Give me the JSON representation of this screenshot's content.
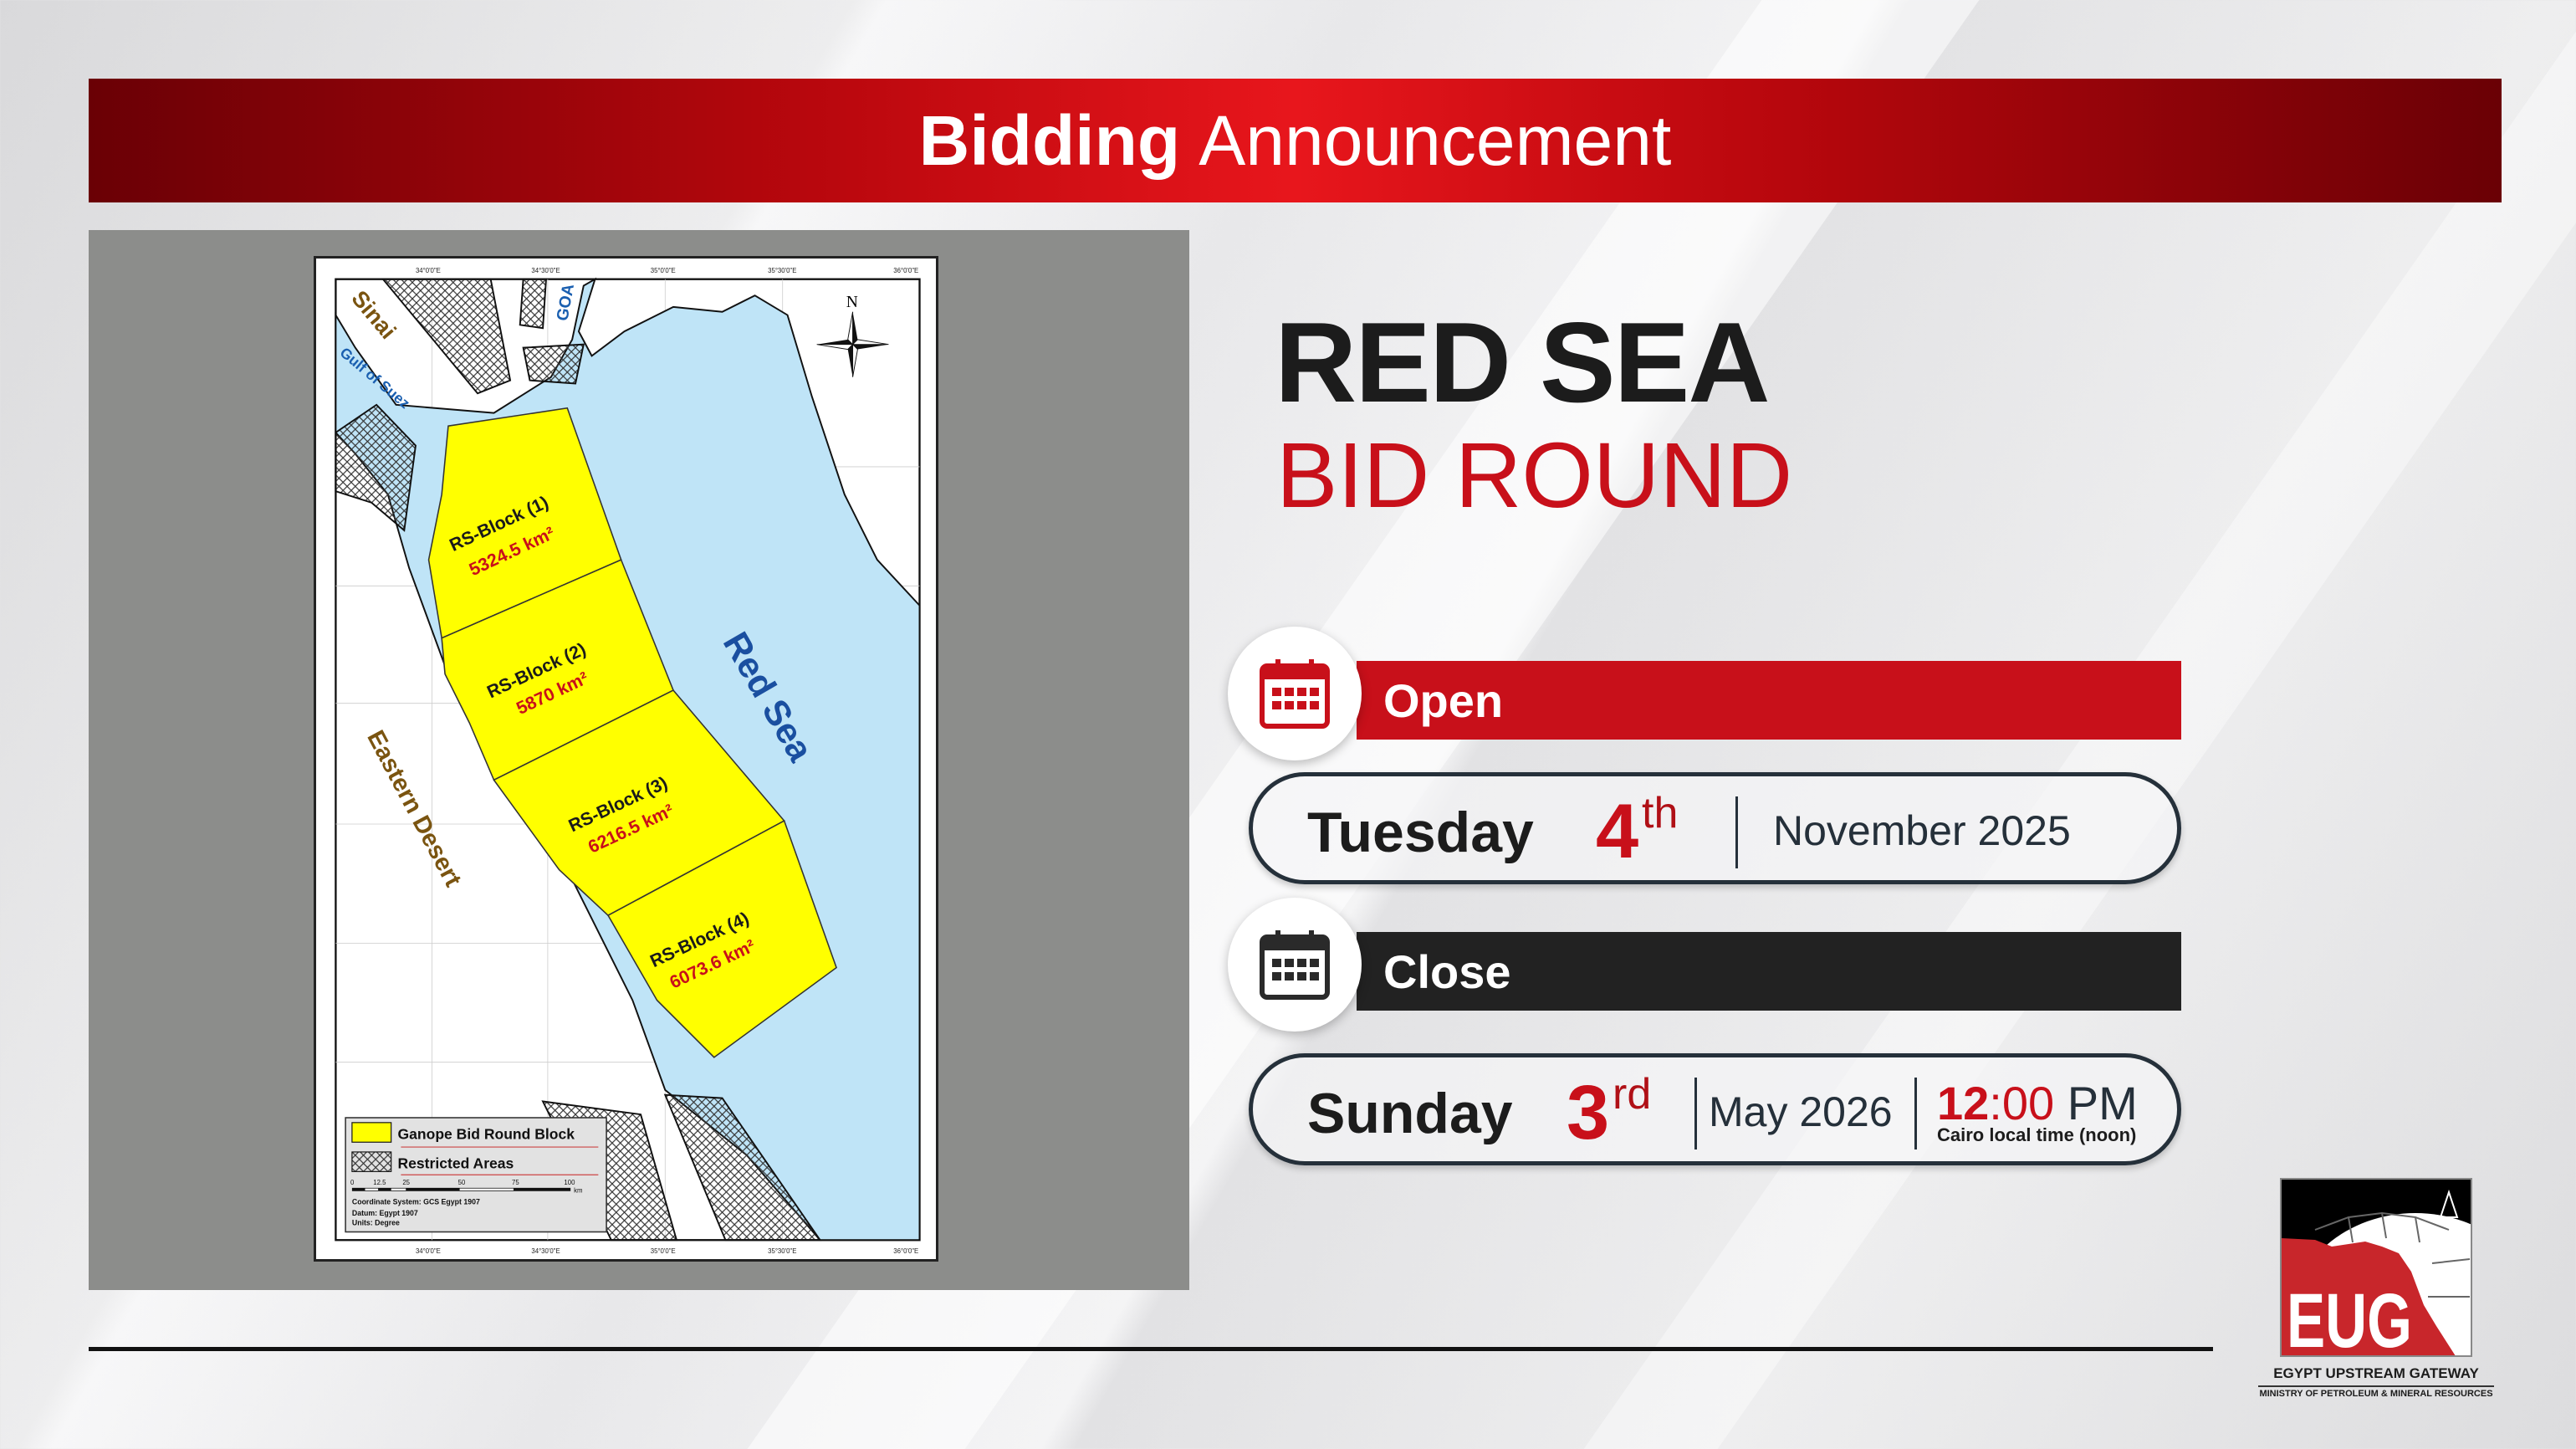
{
  "header": {
    "title_bold": "Bidding",
    "title_rest": "Announcement"
  },
  "headline": {
    "line1": "RED SEA",
    "line2": "BID ROUND"
  },
  "open": {
    "label": "Open",
    "icon": "calendar-icon",
    "color": "#c8101a",
    "day": "Tuesday",
    "date": "4",
    "suffix": "th",
    "month_year": "November 2025"
  },
  "close": {
    "label": "Close",
    "icon": "calendar-icon",
    "color": "#222222",
    "day": "Sunday",
    "date": "3",
    "suffix": "rd",
    "month_year": "May 2026",
    "time_bold": "12",
    "time_rest": ":00",
    "time_ampm": "PM",
    "time_note": "Cairo local time (noon)"
  },
  "map": {
    "labels": {
      "sinai": "Sinai",
      "gulf_of_suez": "Gulf of Suez",
      "goa": "GOA",
      "red_sea": "Red Sea",
      "eastern_desert": "Eastern Desert",
      "north": "N"
    },
    "blocks": [
      {
        "name": "RS-Block (1)",
        "area": "5324.5 km²"
      },
      {
        "name": "RS-Block (2)",
        "area": "5870 km²"
      },
      {
        "name": "RS-Block (3)",
        "area": "6216.5 km²"
      },
      {
        "name": "RS-Block (4)",
        "area": "6073.6 km²"
      }
    ],
    "longitudes": [
      "34°0'0\"E",
      "34°30'0\"E",
      "35°0'0\"E",
      "35°30'0\"E",
      "36°0'0\"E"
    ],
    "legend": {
      "block": "Ganope Bid Round Block",
      "restricted": "Restricted Areas",
      "scale": [
        "0",
        "12.5",
        "25",
        "50",
        "75",
        "100"
      ],
      "scale_unit": "km",
      "coord_system": "Coordinate System: GCS Egypt 1907",
      "datum": "Datum: Egypt 1907",
      "units": "Units: Degree"
    },
    "colors": {
      "sea": "#bfe4f7",
      "block": "#ffff00",
      "block_label": "#1a1a1a",
      "area_label": "#c8101a",
      "sinai": "#7a5410",
      "gulf": "#1a5fb0"
    }
  },
  "logo": {
    "text": "EUG",
    "name": "EGYPT UPSTREAM GATEWAY",
    "ministry": "MINISTRY OF PETROLEUM & MINERAL RESOURCES"
  }
}
